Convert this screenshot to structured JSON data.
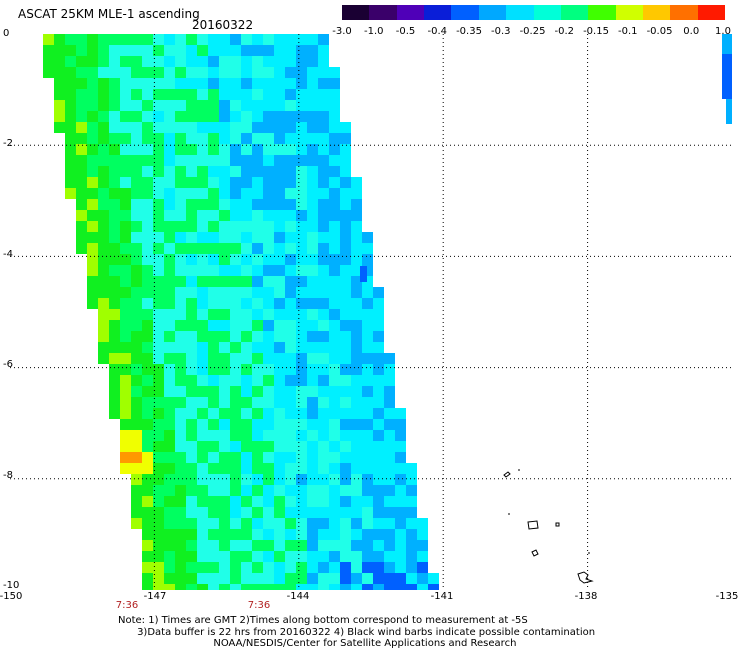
{
  "header": {
    "title": "ASCAT 25KM MLE-1 ascending",
    "date": "20160322"
  },
  "colorbar": {
    "labels": [
      "-3.0",
      "-1.0",
      "-0.5",
      "-0.4",
      "-0.35",
      "-0.3",
      "-0.25",
      "-0.2",
      "-0.15",
      "-0.1",
      "-0.05",
      "0.0",
      "1.0"
    ],
    "colors": [
      "#1a0033",
      "#3a006a",
      "#4f00b8",
      "#0a1ed8",
      "#0060ff",
      "#00a8ff",
      "#00e0ff",
      "#00ffd8",
      "#00ff80",
      "#40ff00",
      "#d0ff00",
      "#ffc800",
      "#ff7000",
      "#ff1a00"
    ]
  },
  "map": {
    "lon_range": [
      -150,
      -135
    ],
    "lat_range": [
      -10,
      0
    ],
    "x_tick_labels": [
      "-150",
      "-147",
      "-144",
      "-141",
      "-138",
      "-135"
    ],
    "y_tick_labels": [
      "0",
      "-2",
      "-4",
      "-6",
      "-8",
      "-10"
    ],
    "swath_colors": {
      "cyan": "#00f0ff",
      "light_cyan": "#20ffe8",
      "green": "#00ff60",
      "green_dark": "#10f020",
      "yellow_green": "#a0ff00",
      "yellow": "#f0ff00",
      "orange": "#ff9900",
      "blue": "#00b0ff",
      "deep_blue": "#0060ff"
    }
  },
  "times": [
    "7:36",
    "7:36"
  ],
  "notes": [
    "Note: 1) Times are GMT 2)Times along bottom correspond to measurement at -5S",
    "      3)Data buffer is 22 hrs from 20160322 4) Black wind barbs indicate possible contamination",
    "                              NOAA/NESDIS/Center for Satellite Applications and Research"
  ]
}
